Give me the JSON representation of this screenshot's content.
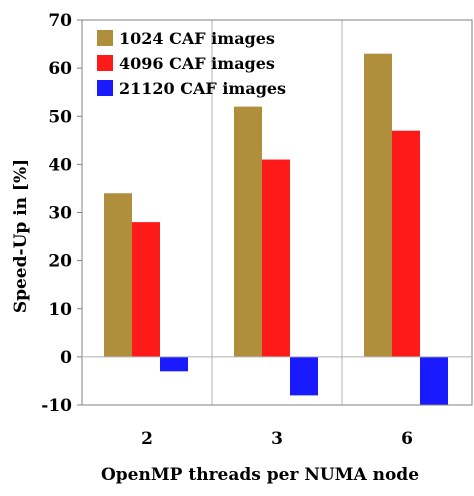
{
  "chart_data": {
    "type": "bar",
    "categories": [
      "2",
      "3",
      "6"
    ],
    "series": [
      {
        "name": "1024 CAF images",
        "color": "#b08f3c",
        "values": [
          34,
          52,
          63
        ]
      },
      {
        "name": "4096 CAF images",
        "color": "#ff1a1a",
        "values": [
          28,
          41,
          47
        ]
      },
      {
        "name": "21120 CAF images",
        "color": "#1a1aff",
        "values": [
          -3,
          -8,
          -10
        ]
      }
    ],
    "xlabel": "OpenMP threads per NUMA node",
    "ylabel": "Speed-Up in [%]",
    "ylim": [
      -10,
      70
    ],
    "yticks": [
      "-10",
      "0",
      "10",
      "20",
      "30",
      "40",
      "50",
      "60",
      "70"
    ],
    "grid": "vertical separators between categories",
    "legend": "top-left"
  }
}
